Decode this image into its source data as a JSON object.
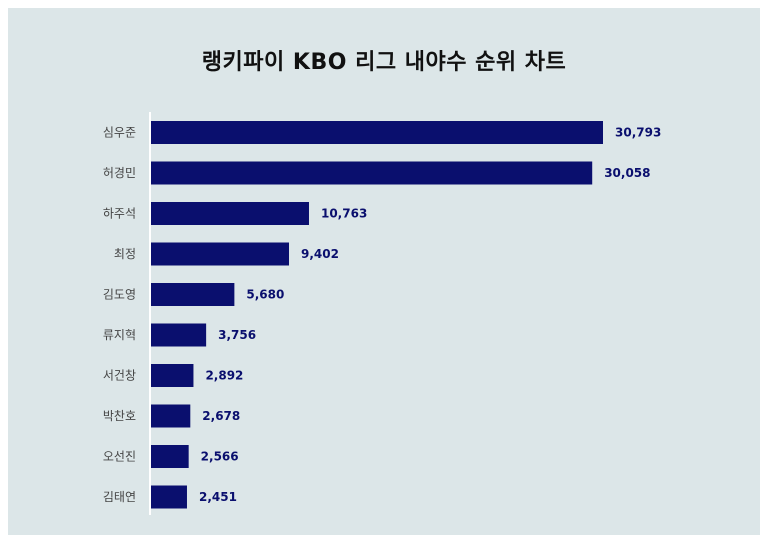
{
  "chart_data": {
    "type": "bar",
    "orientation": "horizontal",
    "title": "랭키파이 KBO 리그 내야수 순위 차트",
    "categories": [
      "심우준",
      "허경민",
      "하주석",
      "최정",
      "김도영",
      "류지혁",
      "서건창",
      "박찬호",
      "오선진",
      "김태연"
    ],
    "values": [
      30793,
      30058,
      10763,
      9402,
      5680,
      3756,
      2892,
      2678,
      2566,
      2451
    ],
    "value_labels": [
      "30,793",
      "30,058",
      "10,763",
      "9,402",
      "5,680",
      "3,756",
      "2,892",
      "2,678",
      "2,566",
      "2,451"
    ],
    "bar_color": "#0a0f6e",
    "background_color": "#dce6e8",
    "xlim": [
      0,
      30793
    ],
    "grid": false,
    "legend": "none"
  }
}
